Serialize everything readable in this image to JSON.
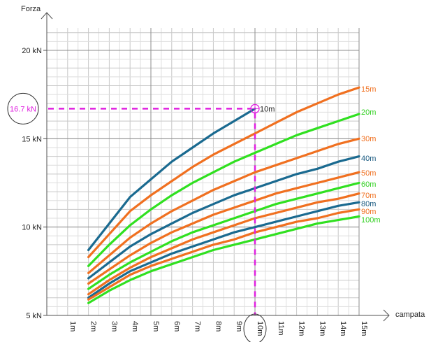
{
  "chart_data": {
    "type": "line",
    "title": "",
    "xlabel": "campata",
    "ylabel": "Forza",
    "x_ticks": [
      "1m",
      "2m",
      "3m",
      "4m",
      "5m",
      "6m",
      "7m",
      "8m",
      "9m",
      "10m",
      "11m",
      "12m",
      "13m",
      "14m",
      "15m"
    ],
    "y_ticks": [
      "5 kN",
      "10 kN",
      "15 kN",
      "20 kN"
    ],
    "y_tick_values": [
      5,
      10,
      15,
      20
    ],
    "xlim": [
      0,
      15
    ],
    "ylim": [
      5,
      22
    ],
    "grid": true,
    "legend": "right",
    "x": [
      2,
      3,
      4,
      5,
      6,
      7,
      8,
      9,
      10,
      11,
      12,
      13,
      14,
      15
    ],
    "series": [
      {
        "name": "10m",
        "color": "#1a6a90",
        "values": [
          8.7,
          10.2,
          11.7,
          12.7,
          13.7,
          14.5,
          15.3,
          16.0,
          16.7,
          null,
          null,
          null,
          null,
          null
        ]
      },
      {
        "name": "15m",
        "color": "#f07020",
        "values": [
          8.3,
          9.6,
          10.9,
          11.8,
          12.6,
          13.4,
          14.1,
          14.7,
          15.3,
          15.9,
          16.5,
          17.0,
          17.5,
          17.9
        ]
      },
      {
        "name": "20m",
        "color": "#30e020",
        "values": [
          7.8,
          9.0,
          10.1,
          11.0,
          11.8,
          12.5,
          13.1,
          13.7,
          14.2,
          14.7,
          15.2,
          15.6,
          16.0,
          16.4
        ]
      },
      {
        "name": "30m",
        "color": "#f07020",
        "values": [
          7.4,
          8.4,
          9.4,
          10.2,
          10.9,
          11.5,
          12.1,
          12.6,
          13.1,
          13.5,
          13.9,
          14.3,
          14.7,
          15.0
        ]
      },
      {
        "name": "40m",
        "color": "#1a6a90",
        "values": [
          7.1,
          8.0,
          8.9,
          9.6,
          10.2,
          10.8,
          11.3,
          11.8,
          12.2,
          12.6,
          13.0,
          13.3,
          13.7,
          14.0
        ]
      },
      {
        "name": "50m",
        "color": "#f07020",
        "values": [
          6.8,
          7.6,
          8.4,
          9.1,
          9.7,
          10.2,
          10.7,
          11.1,
          11.5,
          11.9,
          12.2,
          12.5,
          12.8,
          13.1
        ]
      },
      {
        "name": "60m",
        "color": "#30e020",
        "values": [
          6.5,
          7.3,
          8.0,
          8.6,
          9.2,
          9.7,
          10.1,
          10.5,
          10.9,
          11.3,
          11.6,
          11.9,
          12.2,
          12.5
        ]
      },
      {
        "name": "70m",
        "color": "#f07020",
        "values": [
          6.2,
          7.0,
          7.7,
          8.3,
          8.8,
          9.3,
          9.7,
          10.1,
          10.5,
          10.8,
          11.1,
          11.4,
          11.6,
          11.9
        ]
      },
      {
        "name": "80m",
        "color": "#1a6a90",
        "values": [
          6.0,
          6.8,
          7.5,
          8.0,
          8.5,
          8.9,
          9.3,
          9.7,
          10.0,
          10.3,
          10.6,
          10.9,
          11.2,
          11.4
        ]
      },
      {
        "name": "90m",
        "color": "#f07020",
        "values": [
          5.9,
          6.6,
          7.3,
          7.8,
          8.2,
          8.6,
          9.0,
          9.3,
          9.7,
          10.0,
          10.3,
          10.5,
          10.8,
          11.0
        ]
      },
      {
        "name": "100m",
        "color": "#30e020",
        "values": [
          5.7,
          6.4,
          7.0,
          7.5,
          7.9,
          8.3,
          8.7,
          9.0,
          9.3,
          9.6,
          9.9,
          10.2,
          10.4,
          10.6
        ]
      }
    ],
    "annotations": [
      {
        "text": "16.7 kN",
        "x": 10,
        "y": 16.7,
        "color": "#e020e0"
      },
      {
        "text": "10m",
        "x": 10,
        "y": 16.7
      }
    ],
    "highlight_x_tick": "10m",
    "marker_color": "#e020e0"
  }
}
